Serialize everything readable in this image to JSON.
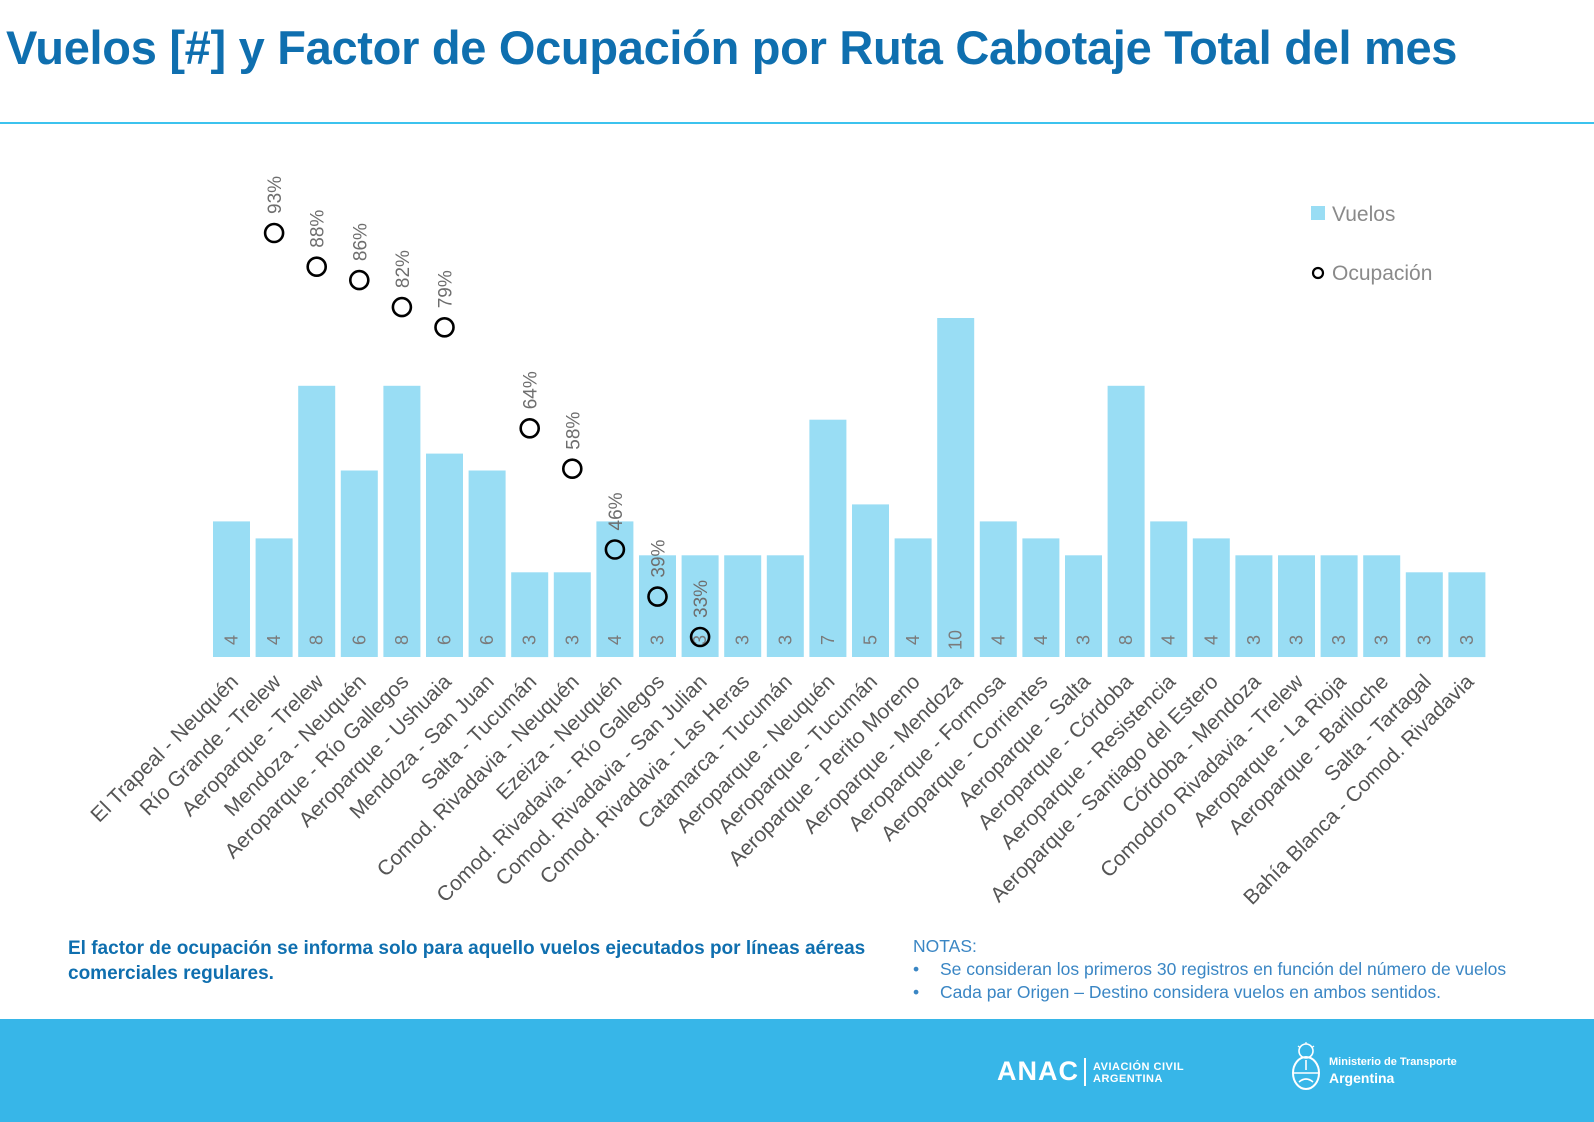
{
  "title": "Vuelos [#] y Factor de Ocupación por Ruta Cabotaje Total del mes",
  "legend": {
    "bars_label": "Vuelos",
    "markers_label": "Ocupación"
  },
  "footnote": "El factor de ocupación se informa solo para aquello vuelos ejecutados por líneas aéreas comerciales regulares.",
  "notes": {
    "heading": "NOTAS:",
    "items": [
      "Se consideran los primeros 30 registros en función del número de vuelos",
      "Cada par Origen – Destino considera vuelos en ambos sentidos."
    ]
  },
  "footer": {
    "anac_word": "ANAC",
    "anac_sub_line1": "AVIACIÓN CIVIL",
    "anac_sub_line2": "ARGENTINA",
    "ministry_line1": "Ministerio de Transporte",
    "ministry_line2": "Argentina"
  },
  "colors": {
    "title": "#0f6faf",
    "bars": "#99ddf4",
    "rule": "#3cc3ee",
    "footer_band": "#37b6e8",
    "notes": "#3a86c4"
  },
  "chart_data": {
    "type": "bar",
    "categories": [
      "El Trapeal - Neuquén",
      "Río Grande - Trelew",
      "Aeroparque - Trelew",
      "Mendoza - Neuquén",
      "Aeroparque - Río Gallegos",
      "Aeroparque - Ushuaia",
      "Mendoza - San Juan",
      "Salta - Tucumán",
      "Comod. Rivadavia - Neuquén",
      "Ezeiza - Neuquén",
      "Comod. Rivadavia - Río Gallegos",
      "Comod. Rivadavia - San Julian",
      "Comod. Rivadavia - Las Heras",
      "Catamarca - Tucumán",
      "Aeroparque - Neuquén",
      "Aeroparque - Tucumán",
      "Aeroparque - Perito Moreno",
      "Aeroparque - Mendoza",
      "Aeroparque - Formosa",
      "Aeroparque - Corrientes",
      "Aeroparque - Salta",
      "Aeroparque - Córdoba",
      "Aeroparque - Resistencia",
      "Aeroparque - Santiago del Estero",
      "Córdoba - Mendoza",
      "Comodoro Rivadavia - Trelew",
      "Aeroparque - La Rioja",
      "Aeroparque - Bariloche",
      "Salta - Tartagal",
      "Bahía Blanca - Comod. Rivadavia"
    ],
    "series": [
      {
        "name": "Vuelos",
        "kind": "bar",
        "values": [
          4.0,
          3.5,
          8.0,
          5.5,
          8.0,
          6.0,
          5.5,
          2.5,
          2.5,
          4.0,
          3.0,
          3.0,
          3.0,
          3.0,
          7.0,
          4.5,
          3.5,
          10.0,
          4.0,
          3.5,
          3.0,
          8.0,
          4.0,
          3.5,
          3.0,
          3.0,
          3.0,
          3.0,
          2.5,
          2.5
        ],
        "data_labels": [
          "4",
          "4",
          "8",
          "6",
          "8",
          "6",
          "6",
          "3",
          "3",
          "4",
          "3",
          "3",
          "3",
          "3",
          "7",
          "5",
          "4",
          "10",
          "4",
          "4",
          "3",
          "8",
          "4",
          "4",
          "3",
          "3",
          "3",
          "3",
          "3",
          "3"
        ]
      },
      {
        "name": "Ocupación",
        "kind": "marker",
        "values": [
          null,
          93,
          88,
          86,
          82,
          79,
          null,
          64,
          58,
          46,
          39,
          33,
          null,
          null,
          null,
          null,
          null,
          null,
          null,
          null,
          null,
          null,
          null,
          null,
          null,
          null,
          null,
          null,
          null,
          null
        ],
        "data_labels": [
          null,
          "93%",
          "88%",
          "86%",
          "82%",
          "79%",
          null,
          "64%",
          "58%",
          "46%",
          "39%",
          "33%",
          null,
          null,
          null,
          null,
          null,
          null,
          null,
          null,
          null,
          null,
          null,
          null,
          null,
          null,
          null,
          null,
          null,
          null
        ]
      }
    ],
    "ylim": [
      0,
      10
    ],
    "occupancy_range": [
      33,
      93
    ],
    "grid": false,
    "legend_position": "top-right"
  }
}
